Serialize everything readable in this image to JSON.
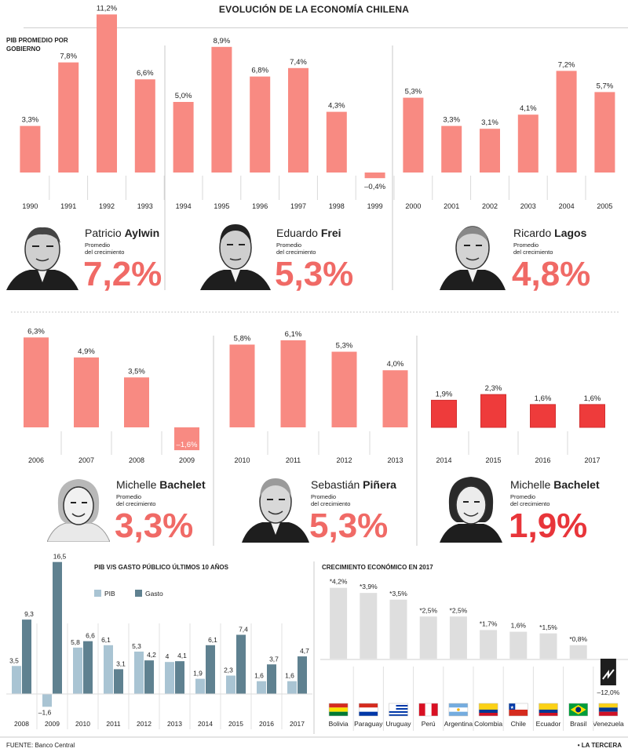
{
  "title": "EVOLUCIÓN DE LA ECONOMÍA CHILENA",
  "pib_label_line1": "PIB PROMEDIO POR",
  "pib_label_line2": "GOBIERNO",
  "avg_label_line1": "Promedio",
  "avg_label_line2": "del crecimiento",
  "colors": {
    "bar": "#f88a82",
    "bar_dark": "#ee3b3b",
    "pib": "#a9c4d3",
    "gasto": "#5f8190",
    "gray": "#dedede",
    "accent_text": "#f06a66",
    "accent_dark": "#e8353a"
  },
  "governments": [
    {
      "first": "Patricio",
      "last": "Aylwin",
      "average": "7,2%"
    },
    {
      "first": "Eduardo",
      "last": "Frei",
      "average": "5,3%"
    },
    {
      "first": "Ricardo",
      "last": "Lagos",
      "average": "4,8%"
    },
    {
      "first": "Michelle",
      "last": "Bachelet",
      "average": "3,3%"
    },
    {
      "first": "Sebastián",
      "last": "Piñera",
      "average": "5,3%"
    },
    {
      "first": "Michelle",
      "last": "Bachelet",
      "average": "1,9%"
    }
  ],
  "gasto_chart": {
    "title": "PIB V/S GASTO PÚBLICO ÚLTIMOS 10 AÑOS",
    "legend": [
      "PIB",
      "Gasto"
    ]
  },
  "regional_chart": {
    "title": "CRECIMIENTO ECONÓMICO EN 2017"
  },
  "footer": {
    "source_label": "FUENTE:",
    "source": "Banco Central",
    "brand": "• LA TERCERA"
  },
  "chart_data": [
    {
      "type": "bar",
      "title": "PIB PROMEDIO POR GOBIERNO",
      "categories": [
        "1990",
        "1991",
        "1992",
        "1993",
        "1994",
        "1995",
        "1996",
        "1997",
        "1998",
        "1999",
        "2000",
        "2001",
        "2002",
        "2003",
        "2004",
        "2005"
      ],
      "values": [
        3.3,
        7.8,
        11.2,
        6.6,
        5.0,
        8.9,
        6.8,
        7.4,
        4.3,
        -0.4,
        5.3,
        3.3,
        3.1,
        4.1,
        7.2,
        5.7
      ],
      "labels": [
        "3,3%",
        "7,8%",
        "11,2%",
        "6,6%",
        "5,0%",
        "8,9%",
        "6,8%",
        "7,4%",
        "4,3%",
        "–0,4%",
        "5,3%",
        "3,3%",
        "3,1%",
        "4,1%",
        "7,2%",
        "5,7%"
      ]
    },
    {
      "type": "bar",
      "categories": [
        "2006",
        "2007",
        "2008",
        "2009",
        "2010",
        "2011",
        "2012",
        "2013",
        "2014",
        "2015",
        "2016",
        "2017"
      ],
      "values": [
        6.3,
        4.9,
        3.5,
        -1.6,
        5.8,
        6.1,
        5.3,
        4.0,
        1.9,
        2.3,
        1.6,
        1.6
      ],
      "labels": [
        "6,3%",
        "4,9%",
        "3,5%",
        "–1,6%",
        "5,8%",
        "6,1%",
        "5,3%",
        "4,0%",
        "1,9%",
        "2,3%",
        "1,6%",
        "1,6%"
      ]
    },
    {
      "type": "bar",
      "title": "PIB V/S GASTO PÚBLICO ÚLTIMOS 10 AÑOS",
      "categories": [
        "2008",
        "2009",
        "2010",
        "2011",
        "2012",
        "2013",
        "2014",
        "2015",
        "2016",
        "2017"
      ],
      "series": [
        {
          "name": "PIB",
          "values": [
            3.5,
            -1.6,
            5.8,
            6.1,
            5.3,
            4.0,
            1.9,
            2.3,
            1.6,
            1.6
          ],
          "labels": [
            "3,5",
            "–1,6",
            "5,8",
            "6,1",
            "5,3",
            "4",
            "1,9",
            "2,3",
            "1,6",
            "1,6"
          ]
        },
        {
          "name": "Gasto",
          "values": [
            9.3,
            16.5,
            6.6,
            3.1,
            4.2,
            4.1,
            6.1,
            7.4,
            3.7,
            4.7
          ],
          "labels": [
            "9,3",
            "16,5",
            "6,6",
            "3,1",
            "4,2",
            "4,1",
            "6,1",
            "7,4",
            "3,7",
            "4,7"
          ]
        }
      ]
    },
    {
      "type": "bar",
      "title": "CRECIMIENTO ECONÓMICO EN 2017",
      "categories": [
        "Bolivia",
        "Paraguay",
        "Uruguay",
        "Perú",
        "Argentina",
        "Colombia",
        "Chile",
        "Ecuador",
        "Brasil",
        "Venezuela"
      ],
      "values": [
        4.2,
        3.9,
        3.5,
        2.5,
        2.5,
        1.7,
        1.6,
        1.5,
        0.8,
        -12.0
      ],
      "labels": [
        "*4,2%",
        "*3,9%",
        "*3,5%",
        "*2,5%",
        "*2,5%",
        "*1,7%",
        "1,6%",
        "*1,5%",
        "*0,8%",
        "–12,0%"
      ]
    }
  ]
}
